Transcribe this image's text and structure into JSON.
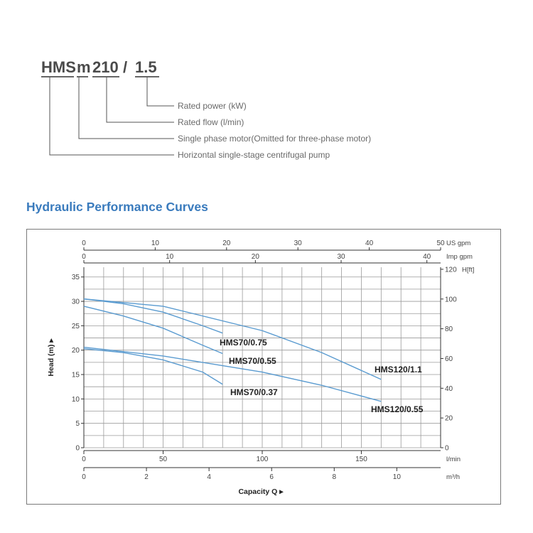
{
  "model_code": {
    "parts": [
      "HMS",
      "m",
      "210",
      "/",
      "1.5"
    ],
    "descriptions": [
      "Rated power (kW)",
      "Rated flow (l/min)",
      "Single phase motor(Omitted for three-phase motor)",
      "Horizontal single-stage centrifugal pump"
    ]
  },
  "section_title": "Hydraulic Performance Curves",
  "colors": {
    "curve": "#5a9bd0",
    "title": "#3a7bbd",
    "grid": "#9a9a9a"
  },
  "chart_data": {
    "type": "line",
    "title": "",
    "xlabel": "Capacity Q",
    "ylabel": "Head (m)",
    "xlim": [
      0,
      190
    ],
    "ylim": [
      0,
      37
    ],
    "grid": true,
    "axes": {
      "bottom_primary": {
        "unit": "l/min",
        "ticks": [
          "0",
          "50",
          "100",
          "150"
        ]
      },
      "bottom_secondary": {
        "unit": "m³/h",
        "ticks": [
          "0",
          "2",
          "4",
          "6",
          "8",
          "10"
        ]
      },
      "top_us_gpm": {
        "unit": "US gpm",
        "ticks": [
          "0",
          "10",
          "20",
          "30",
          "40",
          "50"
        ]
      },
      "top_imp_gpm": {
        "unit": "Imp gpm",
        "ticks": [
          "0",
          "10",
          "20",
          "30",
          "40"
        ]
      },
      "left_head_m": {
        "ticks": [
          "0",
          "5",
          "10",
          "15",
          "20",
          "25",
          "30",
          "35"
        ]
      },
      "right_head_ft": {
        "unit": "H[ft]",
        "ticks": [
          "0",
          "20",
          "40",
          "60",
          "80",
          "100",
          "120"
        ]
      }
    },
    "series": [
      {
        "name": "HMS70/0.75",
        "x": [
          10,
          30,
          50,
          70,
          80
        ],
        "y": [
          30.5,
          29.5,
          27.8,
          25,
          23.5
        ]
      },
      {
        "name": "HMS70/0.55",
        "x": [
          10,
          30,
          50,
          70,
          80
        ],
        "y": [
          29,
          27,
          24.5,
          21,
          19.3
        ]
      },
      {
        "name": "HMS70/0.37",
        "x": [
          10,
          30,
          50,
          70,
          80
        ],
        "y": [
          20.3,
          19.5,
          18,
          15.5,
          13
        ]
      },
      {
        "name": "HMS120/1.1",
        "x": [
          10,
          50,
          100,
          130,
          160
        ],
        "y": [
          30.5,
          29,
          24,
          19.5,
          14
        ]
      },
      {
        "name": "HMS120/0.55",
        "x": [
          10,
          50,
          100,
          130,
          160
        ],
        "y": [
          20.6,
          18.8,
          15.5,
          12.8,
          9.5
        ]
      }
    ]
  }
}
